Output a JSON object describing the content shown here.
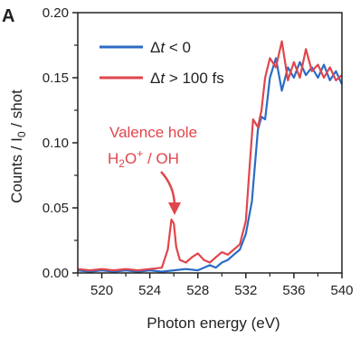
{
  "panel_label": "A",
  "legend": {
    "items": [
      {
        "prefix": "Δ",
        "var": "t",
        "rest": " < 0"
      },
      {
        "prefix": "Δ",
        "var": "t",
        "rest": " > 100 fs"
      }
    ]
  },
  "annotation": {
    "line1": "Valence hole",
    "line2_main": "H",
    "line2_sub": "2",
    "line2_o": "O",
    "line2_sup": "+",
    "line2_rest": " / OH"
  },
  "chart_data": {
    "type": "line",
    "xlabel": "Photon energy (eV)",
    "ylabel": "Counts / I₀ / shot",
    "ylabel_parts": {
      "a": "Counts / I",
      "sub": "0",
      "b": " / shot"
    },
    "xlim": [
      518,
      540
    ],
    "ylim": [
      0,
      0.2
    ],
    "xticks": [
      520,
      524,
      528,
      532,
      536,
      540
    ],
    "yticks": [
      0.0,
      0.05,
      0.1,
      0.15,
      0.2
    ],
    "xtick_labels": [
      "520",
      "524",
      "528",
      "532",
      "536",
      "540"
    ],
    "ytick_labels": [
      "0.00",
      "0.05",
      "0.10",
      "0.15",
      "0.20"
    ],
    "colors": {
      "blue": "#2b6cc4",
      "red": "#e0464c"
    },
    "series": [
      {
        "color": "#2b6cc4",
        "x": [
          518.0,
          519.0,
          520.0,
          521.0,
          522.0,
          523.0,
          524.0,
          525.0,
          526.0,
          527.0,
          528.0,
          528.5,
          529.0,
          529.5,
          530.0,
          530.5,
          531.0,
          531.5,
          532.0,
          532.5,
          533.0,
          533.3,
          533.6,
          534.0,
          534.5,
          535.0,
          535.5,
          536.0,
          536.5,
          537.0,
          537.5,
          538.0,
          538.5,
          539.0,
          539.5,
          540.0
        ],
        "y": [
          0.002,
          0.001,
          0.002,
          0.001,
          0.002,
          0.001,
          0.002,
          0.001,
          0.002,
          0.003,
          0.002,
          0.004,
          0.006,
          0.004,
          0.008,
          0.01,
          0.014,
          0.018,
          0.03,
          0.055,
          0.11,
          0.12,
          0.118,
          0.15,
          0.165,
          0.14,
          0.158,
          0.15,
          0.162,
          0.152,
          0.158,
          0.15,
          0.16,
          0.148,
          0.155,
          0.145
        ]
      },
      {
        "color": "#e0464c",
        "x": [
          518.0,
          519.0,
          520.0,
          521.0,
          522.0,
          523.0,
          524.0,
          525.0,
          525.5,
          525.8,
          526.0,
          526.2,
          526.5,
          527.0,
          527.5,
          528.0,
          528.5,
          529.0,
          529.5,
          530.0,
          530.5,
          531.0,
          531.5,
          532.0,
          532.3,
          532.6,
          533.0,
          533.3,
          533.6,
          534.0,
          534.5,
          535.0,
          535.5,
          536.0,
          536.5,
          537.0,
          537.5,
          538.0,
          538.5,
          539.0,
          539.5,
          540.0
        ],
        "y": [
          0.003,
          0.002,
          0.003,
          0.002,
          0.003,
          0.002,
          0.003,
          0.004,
          0.018,
          0.041,
          0.038,
          0.02,
          0.01,
          0.008,
          0.012,
          0.015,
          0.01,
          0.008,
          0.012,
          0.016,
          0.014,
          0.018,
          0.022,
          0.04,
          0.08,
          0.118,
          0.112,
          0.125,
          0.15,
          0.165,
          0.158,
          0.178,
          0.148,
          0.162,
          0.15,
          0.172,
          0.155,
          0.16,
          0.15,
          0.158,
          0.148,
          0.152
        ]
      }
    ]
  }
}
